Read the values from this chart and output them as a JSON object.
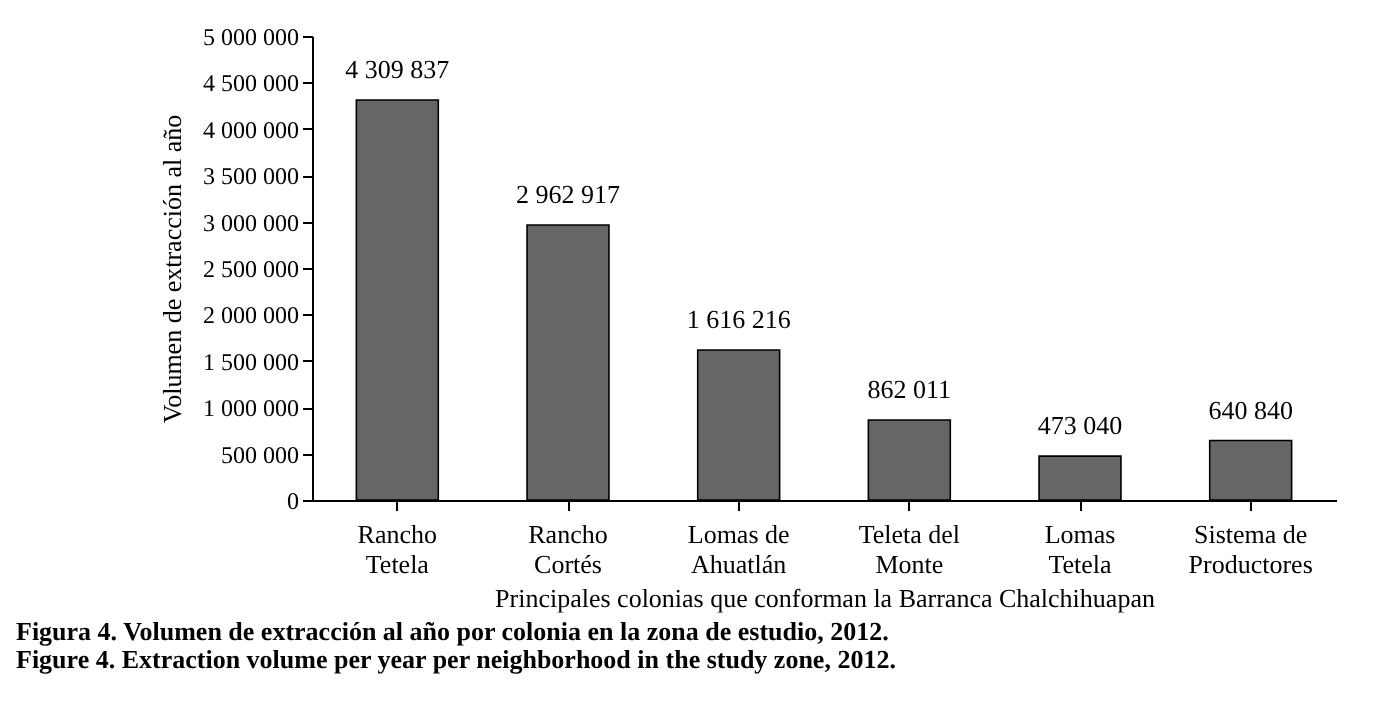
{
  "chart_data": {
    "type": "bar",
    "title": "Figura 4. Volumen de extracción al año por colonia en la zona de estudio, 2012.",
    "subtitle": "Figure 4. Extraction volume per year per neighborhood in the study zone, 2012.",
    "xlabel": "Principales colonias que conforman la Barranca Chalchihuapan",
    "ylabel": "Volumen de extracción al año",
    "categories": [
      "Rancho Tetela",
      "Rancho Cortés",
      "Lomas de Ahuatlán",
      "Teleta del Monte",
      "Lomas Tetela",
      "Sistema de Productores"
    ],
    "values": [
      4309837,
      2962917,
      1616216,
      862011,
      473040,
      640840
    ],
    "value_labels": [
      "4 309 837",
      "2 962 917",
      "1 616 216",
      "862 011",
      "473 040",
      "640 840"
    ],
    "color": "#666666",
    "ylim": [
      0,
      5000000
    ],
    "yticks": [
      0,
      {
        "value": 500000,
        "label": "500 000"
      },
      {
        "value": 1000000,
        "label": "1 000 000"
      },
      {
        "value": 1500000,
        "label": "1 500 000"
      },
      {
        "value": 2000000,
        "label": "2 000 000"
      },
      {
        "value": 2500000,
        "label": "2 500 000"
      },
      {
        "value": 3000000,
        "label": "3 000 000"
      },
      {
        "value": 3500000,
        "label": "3 500 000"
      },
      {
        "value": 4000000,
        "label": "4 000 000"
      },
      {
        "value": 4500000,
        "label": "4 500 000"
      },
      {
        "value": 5000000,
        "label": "5 000 000"
      }
    ],
    "grid": false
  }
}
